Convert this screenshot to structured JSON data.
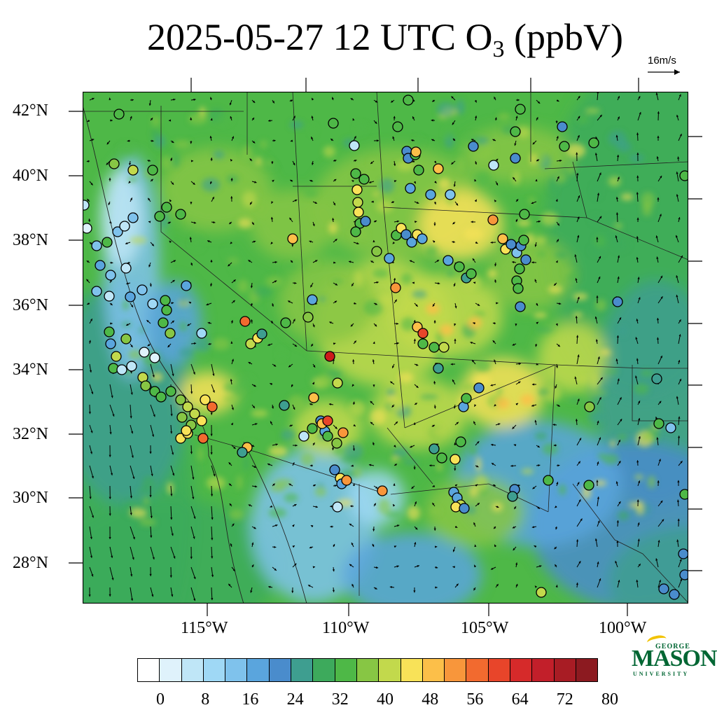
{
  "title": {
    "main": "2025-05-27 12 UTC O",
    "subscript": "3",
    "units": "(ppbV)"
  },
  "wind_key": {
    "label": "16m/s"
  },
  "lat_labels": [
    "42°N",
    "40°N",
    "38°N",
    "36°N",
    "34°N",
    "32°N",
    "30°N",
    "28°N"
  ],
  "lon_labels": [
    "115°W",
    "110°W",
    "105°W",
    "100°W"
  ],
  "colorbar": {
    "colors": [
      "#ffffff",
      "#dff2fb",
      "#bfe6f7",
      "#9fd8f5",
      "#7fc2ec",
      "#5aa5dd",
      "#4a8ccc",
      "#3e9e90",
      "#3daa5c",
      "#4eb847",
      "#87c644",
      "#c2d94c",
      "#f8e258",
      "#fcbf49",
      "#f8963b",
      "#f26a2f",
      "#e8452a",
      "#d62a2a",
      "#c21f2a",
      "#a81c24",
      "#8c1a20"
    ],
    "labels": [
      "0",
      "8",
      "16",
      "24",
      "32",
      "40",
      "48",
      "56",
      "64",
      "72",
      "80"
    ]
  },
  "logo": {
    "line1": "GEORGE",
    "line2": "MASON",
    "line3": "UNIVERSITY"
  },
  "icons": {
    "wind_arrow": "arrow-right-icon"
  }
}
